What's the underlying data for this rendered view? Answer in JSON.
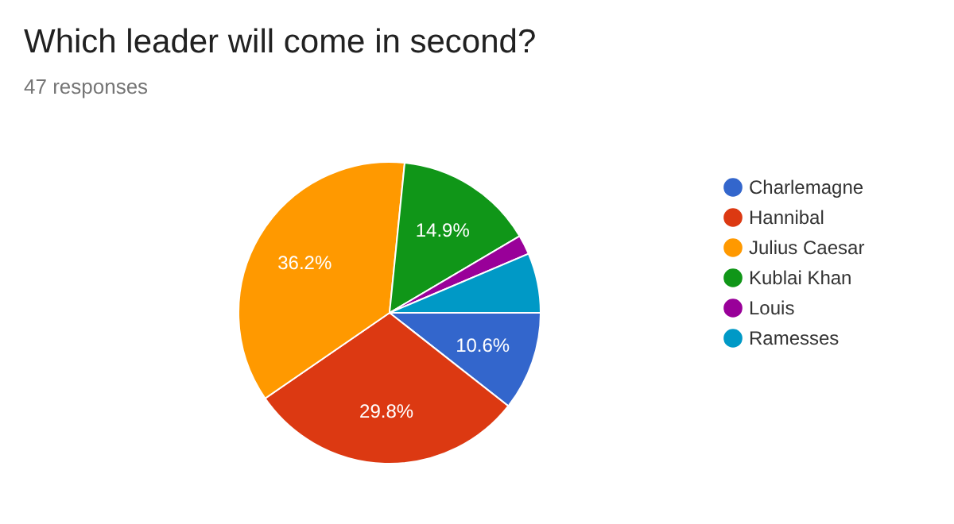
{
  "chart_data": {
    "type": "pie",
    "title": "Which leader will come in second?",
    "subtitle": "47 responses",
    "categories": [
      "Charlemagne",
      "Hannibal",
      "Julius Caesar",
      "Kublai Khan",
      "Louis",
      "Ramesses"
    ],
    "values": [
      10.6,
      29.8,
      36.2,
      14.9,
      2.1,
      6.4
    ],
    "colors": [
      "#3366cc",
      "#dc3912",
      "#ff9900",
      "#109618",
      "#990099",
      "#0099c6"
    ],
    "value_labels": [
      "10.6%",
      "29.8%",
      "36.2%",
      "14.9%",
      null,
      null
    ],
    "legend": "right"
  }
}
